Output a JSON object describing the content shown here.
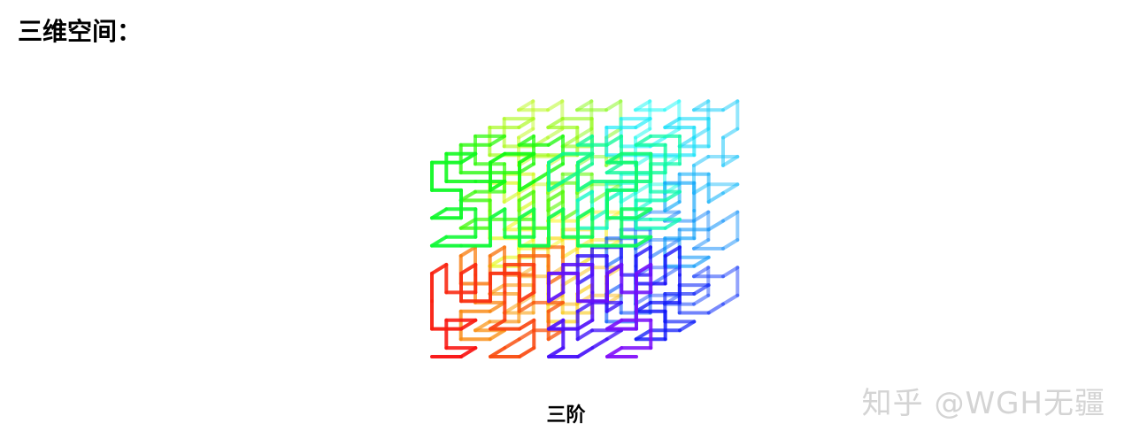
{
  "heading": "三维空间：",
  "figure": {
    "caption": "三阶",
    "curve_order": 3,
    "curve_kind": "3D Hilbert curve",
    "color_scale": "rainbow"
  },
  "watermark": {
    "text": "知乎 @WGH无疆",
    "color": "#d4d4d4"
  }
}
